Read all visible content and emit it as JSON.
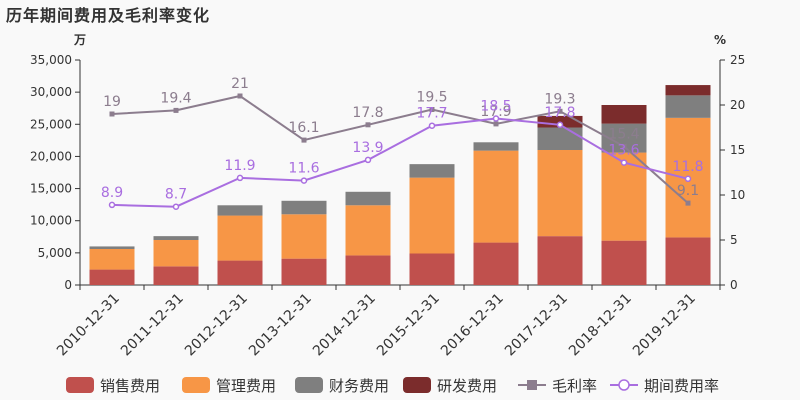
{
  "title": "历年期间费用及毛利率变化",
  "chart_data": {
    "type": "bar",
    "title": "历年期间费用及毛利率变化",
    "left_unit": "万",
    "right_unit": "%",
    "categories": [
      "2010-12-31",
      "2011-12-31",
      "2012-12-31",
      "2013-12-31",
      "2014-12-31",
      "2015-12-31",
      "2016-12-31",
      "2017-12-31",
      "2018-12-31",
      "2019-12-31"
    ],
    "left_axis": {
      "min": 0,
      "max": 35000,
      "ticks": [
        0,
        5000,
        10000,
        15000,
        20000,
        25000,
        30000,
        35000
      ],
      "tick_labels": [
        "0",
        "5,000",
        "10,000",
        "15,000",
        "20,000",
        "25,000",
        "30,000",
        "35,000"
      ]
    },
    "right_axis": {
      "min": 0,
      "max": 25,
      "ticks": [
        0,
        5,
        10,
        15,
        20,
        25
      ],
      "tick_labels": [
        "0",
        "5",
        "10",
        "15",
        "20",
        "25"
      ]
    },
    "stacked_series": [
      {
        "name": "销售费用",
        "color": "#c0504d",
        "values": [
          2400,
          2900,
          3800,
          4100,
          4600,
          4900,
          6600,
          7600,
          6900,
          7400
        ]
      },
      {
        "name": "管理费用",
        "color": "#f79646",
        "values": [
          3200,
          4100,
          7000,
          6900,
          7800,
          11800,
          14300,
          13400,
          13700,
          18600
        ]
      },
      {
        "name": "财务费用",
        "color": "#7f7f7f",
        "values": [
          400,
          600,
          1600,
          2100,
          2100,
          2100,
          1300,
          3500,
          4500,
          3500
        ]
      },
      {
        "name": "研发费用",
        "color": "#7b2c2c",
        "values": [
          0,
          0,
          0,
          0,
          0,
          0,
          0,
          1800,
          2900,
          1600
        ]
      }
    ],
    "line_series": [
      {
        "name": "毛利率",
        "color": "#8c7d8e",
        "marker": "square",
        "values": [
          19,
          19.4,
          21,
          16.1,
          17.8,
          19.5,
          17.9,
          19.3,
          15.4,
          9.1
        ],
        "labels": [
          "19",
          "19.4",
          "21",
          "16.1",
          "17.8",
          "19.5",
          "17.9",
          "19.3",
          "15.4",
          "9.1"
        ]
      },
      {
        "name": "期间费用率",
        "color": "#a96ee0",
        "marker": "circle",
        "values": [
          8.9,
          8.7,
          11.9,
          11.6,
          13.9,
          17.7,
          18.5,
          17.8,
          13.6,
          11.8
        ],
        "labels": [
          "8.9",
          "8.7",
          "11.9",
          "11.6",
          "13.9",
          "17.7",
          "18.5",
          "17.8",
          "13.6",
          "11.8"
        ]
      }
    ],
    "legend": {
      "placement": "bottom",
      "items": [
        "销售费用",
        "管理费用",
        "财务费用",
        "研发费用",
        "毛利率",
        "期间费用率"
      ]
    },
    "grid": false
  }
}
